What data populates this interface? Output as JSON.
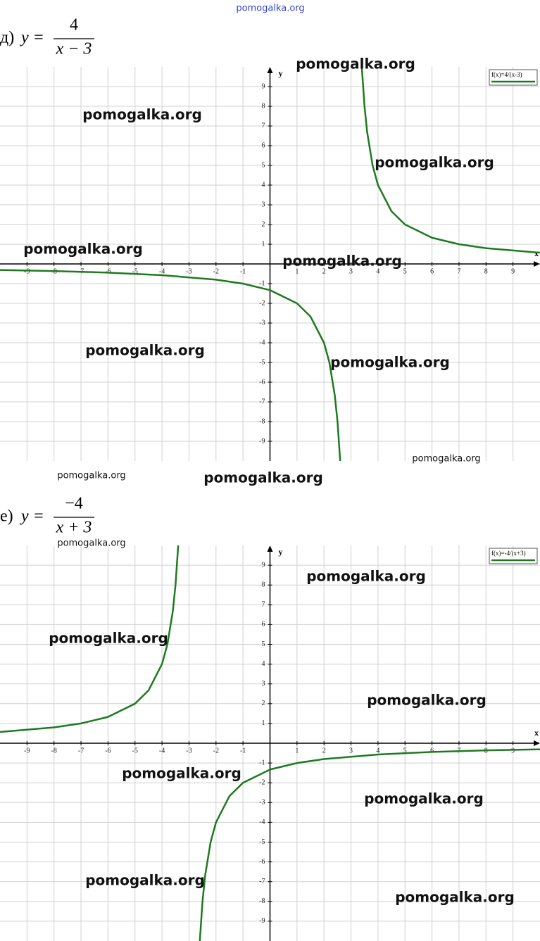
{
  "watermark": "pomogalka.org",
  "chart_data": [
    {
      "type": "line",
      "label_prefix": "д)",
      "label_y": "y =",
      "numerator": "4",
      "denominator": "x − 3",
      "x_label": "x",
      "y_label": "y",
      "xlim": [
        -10,
        10
      ],
      "ylim": [
        -10,
        10
      ],
      "xticks": [
        -9,
        -8,
        -7,
        -6,
        -5,
        -4,
        -3,
        -2,
        -1,
        1,
        2,
        3,
        4,
        5,
        6,
        7,
        8,
        9
      ],
      "yticks": [
        -9,
        -8,
        -7,
        -6,
        -5,
        -4,
        -3,
        -2,
        -1,
        1,
        2,
        3,
        4,
        5,
        6,
        7,
        8,
        9
      ],
      "grid": true,
      "series": [
        {
          "name": "f(x)=4/(x-3)",
          "color": "#1f7a1f",
          "x": [
            -10,
            -8,
            -6,
            -4,
            -2,
            -1,
            0,
            1,
            1.5,
            2,
            2.2,
            2.4,
            2.5,
            2.6,
            3,
            3.4,
            3.5,
            3.6,
            3.8,
            4,
            4.5,
            5,
            6,
            7,
            8,
            10
          ],
          "values": [
            -0.31,
            -0.36,
            -0.44,
            -0.57,
            -0.8,
            -1,
            -1.33,
            -2,
            -2.67,
            -4,
            -5,
            -6.67,
            -8,
            -10,
            null,
            10,
            8,
            6.67,
            5,
            4,
            2.67,
            2,
            1.33,
            1,
            0.8,
            0.57
          ]
        }
      ]
    },
    {
      "type": "line",
      "label_prefix": "е)",
      "label_y": "y =",
      "numerator": "−4",
      "denominator": "x + 3",
      "x_label": "x",
      "y_label": "y",
      "xlim": [
        -10,
        10
      ],
      "ylim": [
        -10,
        10
      ],
      "xticks": [
        -9,
        -8,
        -7,
        -6,
        -5,
        -4,
        -3,
        -2,
        -1,
        1,
        2,
        3,
        4,
        5,
        6,
        7,
        8,
        9
      ],
      "yticks": [
        -9,
        -8,
        -7,
        -6,
        -5,
        -4,
        -3,
        -2,
        -1,
        1,
        2,
        3,
        4,
        5,
        6,
        7,
        8,
        9
      ],
      "grid": true,
      "series": [
        {
          "name": "f(x)=-4/(x+3)",
          "color": "#1f7a1f",
          "x": [
            -10,
            -8,
            -7,
            -6,
            -5,
            -4.5,
            -4,
            -3.8,
            -3.6,
            -3.5,
            -3.4,
            -3,
            -2.6,
            -2.5,
            -2.4,
            -2.2,
            -2,
            -1.5,
            -1,
            0,
            1,
            2,
            4,
            6,
            8,
            10
          ],
          "values": [
            0.57,
            0.8,
            1,
            1.33,
            2,
            2.67,
            4,
            5,
            6.67,
            8,
            10,
            null,
            -10,
            -8,
            -6.67,
            -5,
            -4,
            -2.67,
            -2,
            -1.33,
            -1,
            -0.8,
            -0.57,
            -0.44,
            -0.36,
            -0.31
          ]
        }
      ]
    }
  ]
}
